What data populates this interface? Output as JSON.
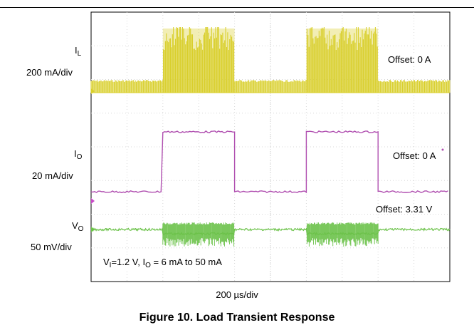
{
  "caption": "Figure 10. Load Transient Response",
  "timescale": "200 µs/div",
  "channels": {
    "il": {
      "symbol": "I",
      "sub": "L",
      "scale": "200 mA/div",
      "offset": "Offset: 0 A",
      "color": "#d9cf2b"
    },
    "io": {
      "symbol": "I",
      "sub": "O",
      "scale": "20 mA/div",
      "offset": "Offset: 0 A",
      "color": "#b04fb0"
    },
    "vo": {
      "symbol": "V",
      "sub": "O",
      "scale": "50 mV/div",
      "offset": "Offset: 3.31 V",
      "color": "#6cc24a"
    }
  },
  "condition": {
    "v_sym": "V",
    "v_sub": "I",
    "v_val": "=1.2 V, ",
    "i_sym": "I",
    "i_sub": "O",
    "i_val": " = 6 mA to 50 mA"
  },
  "chart_data": {
    "type": "line",
    "x_divisions": 10,
    "y_divisions": 8,
    "grid": true,
    "x_unit": "µs",
    "x_per_div": 200,
    "series": [
      {
        "name": "I_L",
        "note": "pulse bursts; high-amplitude burst during high-load intervals",
        "load_high_intervals_div": [
          [
            2.0,
            4.0
          ],
          [
            6.0,
            8.0
          ]
        ]
      },
      {
        "name": "I_O",
        "steps": [
          [
            0,
            "low"
          ],
          [
            2.0,
            "high"
          ],
          [
            4.0,
            "low"
          ],
          [
            6.0,
            "high"
          ],
          [
            8.0,
            "low"
          ]
        ],
        "low_mA": 6,
        "high_mA": 50
      },
      {
        "name": "V_O",
        "note": "ripple increases during high-load intervals",
        "load_high_intervals_div": [
          [
            2.0,
            4.0
          ],
          [
            6.0,
            8.0
          ]
        ]
      }
    ]
  }
}
